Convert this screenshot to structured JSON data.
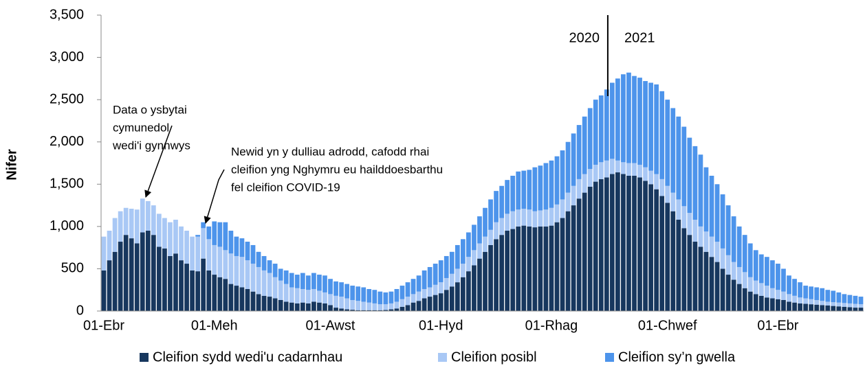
{
  "chart_data": {
    "type": "stacked_bar",
    "y_label": "Nifer",
    "ylim": [
      0,
      3500
    ],
    "yticks": [
      0,
      500,
      {
        "value": 1000,
        "label": "1,000"
      },
      {
        "value": 1500,
        "label": "1,500"
      },
      {
        "value": 2000,
        "label": "2,000"
      },
      {
        "value": 2500,
        "label": "2,500"
      },
      {
        "value": 3000,
        "label": "3,000"
      },
      {
        "value": 3500,
        "label": "3,500"
      }
    ],
    "categories": [
      "01-Ebr",
      null,
      null,
      null,
      null,
      null,
      null,
      null,
      null,
      null,
      null,
      null,
      null,
      null,
      null,
      null,
      null,
      null,
      null,
      null,
      "01-Meh",
      null,
      null,
      null,
      null,
      null,
      null,
      null,
      null,
      null,
      null,
      null,
      null,
      null,
      null,
      null,
      null,
      null,
      null,
      null,
      null,
      "01-Awst",
      null,
      null,
      null,
      null,
      null,
      null,
      null,
      null,
      null,
      null,
      null,
      null,
      null,
      null,
      null,
      null,
      null,
      null,
      null,
      "01-Hyd",
      null,
      null,
      null,
      null,
      null,
      null,
      null,
      null,
      null,
      null,
      null,
      null,
      null,
      null,
      null,
      null,
      null,
      null,
      null,
      "01-Rhag",
      null,
      null,
      null,
      null,
      null,
      null,
      null,
      null,
      null,
      null,
      null,
      null,
      null,
      null,
      null,
      null,
      null,
      null,
      null,
      null,
      "01-Chwef",
      null,
      null,
      null,
      null,
      null,
      null,
      null,
      null,
      null,
      null,
      null,
      null,
      null,
      null,
      null,
      null,
      null,
      null,
      null,
      "01-Ebr",
      null,
      null,
      null,
      null,
      null,
      null,
      null,
      null,
      null,
      null,
      null,
      null,
      null,
      null,
      null
    ],
    "series": [
      {
        "name": "Cleifion sydd wedi'u cadarnhau",
        "color": "#17375e",
        "values": [
          480,
          600,
          700,
          820,
          900,
          860,
          800,
          930,
          950,
          900,
          760,
          740,
          650,
          680,
          600,
          560,
          480,
          470,
          620,
          480,
          430,
          400,
          380,
          320,
          300,
          280,
          260,
          230,
          200,
          180,
          170,
          150,
          130,
          110,
          100,
          90,
          100,
          90,
          110,
          100,
          90,
          70,
          40,
          30,
          20,
          15,
          10,
          10,
          10,
          10,
          10,
          12,
          20,
          30,
          50,
          70,
          100,
          120,
          150,
          170,
          190,
          210,
          250,
          290,
          340,
          400,
          470,
          540,
          620,
          700,
          780,
          850,
          900,
          950,
          970,
          1000,
          1010,
          1000,
          990,
          1000,
          1000,
          1010,
          1050,
          1100,
          1180,
          1250,
          1330,
          1400,
          1470,
          1530,
          1560,
          1580,
          1620,
          1640,
          1620,
          1600,
          1600,
          1580,
          1540,
          1500,
          1440,
          1360,
          1280,
          1180,
          1080,
          980,
          900,
          820,
          760,
          700,
          640,
          580,
          500,
          430,
          370,
          320,
          270,
          230,
          200,
          180,
          160,
          150,
          140,
          130,
          110,
          100,
          90,
          85,
          80,
          75,
          70,
          65,
          60,
          55,
          50,
          45,
          40,
          40
        ]
      },
      {
        "name": "Cleifion posibl",
        "color": "#a9c8f5",
        "values": [
          400,
          350,
          400,
          360,
          320,
          350,
          400,
          400,
          350,
          350,
          390,
          360,
          400,
          400,
          400,
          390,
          400,
          410,
          360,
          370,
          350,
          360,
          340,
          360,
          350,
          360,
          340,
          330,
          320,
          300,
          280,
          250,
          230,
          210,
          180,
          180,
          160,
          160,
          150,
          140,
          130,
          130,
          140,
          140,
          130,
          115,
          110,
          100,
          90,
          80,
          70,
          68,
          70,
          80,
          90,
          100,
          100,
          110,
          110,
          110,
          120,
          130,
          140,
          150,
          160,
          160,
          170,
          180,
          180,
          180,
          180,
          200,
          200,
          200,
          210,
          200,
          200,
          200,
          190,
          190,
          200,
          210,
          210,
          220,
          220,
          230,
          230,
          220,
          210,
          200,
          200,
          200,
          180,
          140,
          140,
          150,
          150,
          150,
          160,
          160,
          180,
          200,
          200,
          220,
          240,
          260,
          260,
          260,
          240,
          240,
          240,
          240,
          240,
          230,
          210,
          200,
          190,
          170,
          160,
          150,
          140,
          120,
          110,
          100,
          90,
          80,
          70,
          65,
          60,
          55,
          50,
          45,
          45,
          45,
          45,
          45,
          45,
          40
        ]
      },
      {
        "name": "Cleifion sy’n gwella",
        "color": "#4d94eb",
        "values": [
          0,
          0,
          0,
          0,
          0,
          0,
          0,
          0,
          0,
          0,
          0,
          0,
          0,
          0,
          0,
          0,
          0,
          20,
          70,
          150,
          280,
          290,
          330,
          270,
          230,
          220,
          220,
          220,
          180,
          170,
          150,
          160,
          140,
          160,
          170,
          160,
          190,
          170,
          190,
          190,
          200,
          180,
          170,
          170,
          170,
          170,
          170,
          170,
          160,
          160,
          150,
          140,
          140,
          150,
          160,
          170,
          180,
          190,
          220,
          240,
          250,
          260,
          260,
          260,
          280,
          290,
          290,
          300,
          320,
          340,
          360,
          370,
          380,
          400,
          420,
          450,
          450,
          470,
          520,
          530,
          550,
          560,
          570,
          580,
          600,
          620,
          640,
          680,
          720,
          770,
          790,
          840,
          900,
          970,
          1040,
          1070,
          1030,
          1030,
          1020,
          1040,
          1060,
          1040,
          1020,
          1000,
          980,
          940,
          890,
          870,
          850,
          760,
          720,
          680,
          640,
          590,
          540,
          480,
          440,
          400,
          360,
          340,
          340,
          330,
          310,
          270,
          220,
          200,
          180,
          150,
          150,
          150,
          150,
          140,
          135,
          120,
          105,
          100,
          95,
          90
        ]
      }
    ],
    "annotations": [
      {
        "text": "2020"
      },
      {
        "text": "2021"
      },
      {
        "lines": [
          "Data o ysbytai",
          "cymunedol",
          "wedi'i gynnwys"
        ]
      },
      {
        "lines": [
          "Newid yn y dulliau adrodd, cafodd rhai",
          "cleifion yng Nghymru eu hailddoesbarthu",
          "fel cleifion COVID-19"
        ]
      }
    ]
  }
}
